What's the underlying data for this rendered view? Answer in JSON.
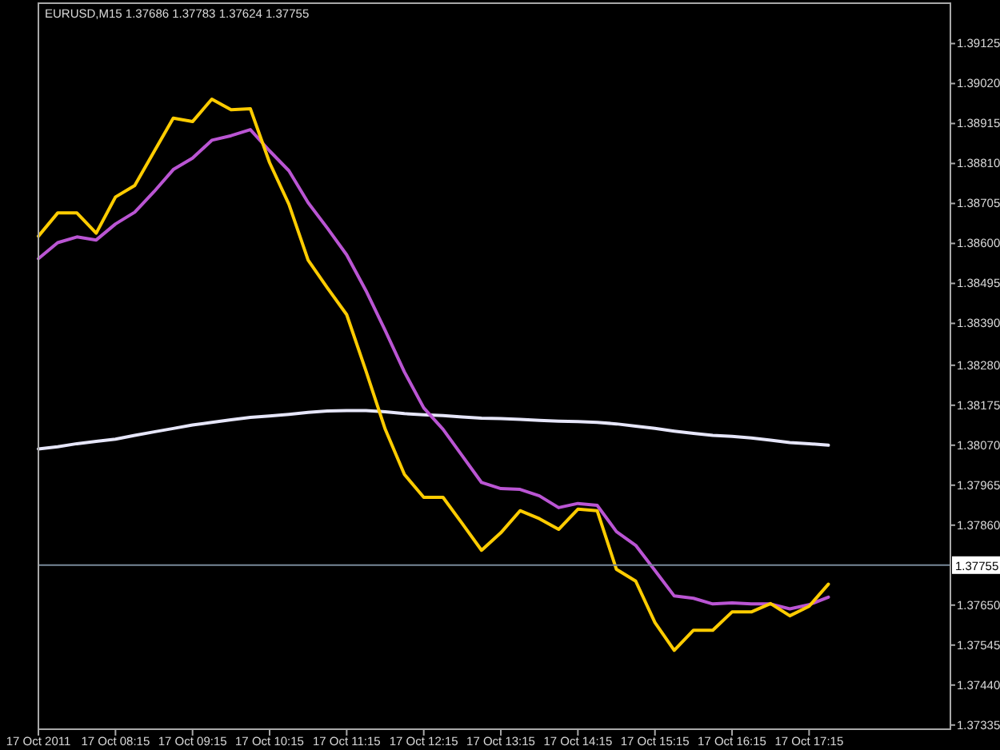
{
  "chart_data": {
    "type": "line",
    "title": "EURUSD,M15 1.37686 1.37783 1.37624 1.37755",
    "x": [
      "2011-10-17T07:15",
      "2011-10-17T07:30",
      "2011-10-17T07:45",
      "2011-10-17T08:00",
      "2011-10-17T08:15",
      "2011-10-17T08:30",
      "2011-10-17T08:45",
      "2011-10-17T09:00",
      "2011-10-17T09:15",
      "2011-10-17T09:30",
      "2011-10-17T09:45",
      "2011-10-17T10:00",
      "2011-10-17T10:15",
      "2011-10-17T10:30",
      "2011-10-17T10:45",
      "2011-10-17T11:00",
      "2011-10-17T11:15",
      "2011-10-17T11:30",
      "2011-10-17T11:45",
      "2011-10-17T12:00",
      "2011-10-17T12:15",
      "2011-10-17T12:30",
      "2011-10-17T12:45",
      "2011-10-17T13:00",
      "2011-10-17T13:15",
      "2011-10-17T13:30",
      "2011-10-17T13:45",
      "2011-10-17T14:00",
      "2011-10-17T14:15",
      "2011-10-17T14:30",
      "2011-10-17T14:45",
      "2011-10-17T15:00",
      "2011-10-17T15:15",
      "2011-10-17T15:30",
      "2011-10-17T15:45",
      "2011-10-17T16:00",
      "2011-10-17T16:15",
      "2011-10-17T16:30",
      "2011-10-17T16:45",
      "2011-10-17T17:00",
      "2011-10-17T17:15",
      "2011-10-17T17:30"
    ],
    "xlim": [
      "2011-10-17T07:15",
      "2011-10-17T19:05"
    ],
    "xticks": [
      {
        "value": "2011-10-17T07:15",
        "label": "17 Oct 2011"
      },
      {
        "value": "2011-10-17T08:15",
        "label": "17 Oct 08:15"
      },
      {
        "value": "2011-10-17T09:15",
        "label": "17 Oct 09:15"
      },
      {
        "value": "2011-10-17T10:15",
        "label": "17 Oct 10:15"
      },
      {
        "value": "2011-10-17T11:15",
        "label": "17 Oct 11:15"
      },
      {
        "value": "2011-10-17T12:15",
        "label": "17 Oct 12:15"
      },
      {
        "value": "2011-10-17T13:15",
        "label": "17 Oct 13:15"
      },
      {
        "value": "2011-10-17T14:15",
        "label": "17 Oct 14:15"
      },
      {
        "value": "2011-10-17T15:15",
        "label": "17 Oct 15:15"
      },
      {
        "value": "2011-10-17T16:15",
        "label": "17 Oct 16:15"
      },
      {
        "value": "2011-10-17T17:15",
        "label": "17 Oct 17:15"
      }
    ],
    "ylim": [
      1.37324,
      1.39231
    ],
    "yticks": [
      1.39125,
      {
        "value": 1.3902,
        "label": "1.39020"
      },
      1.38915,
      {
        "value": 1.3881,
        "label": "1.38810"
      },
      1.38705,
      {
        "value": 1.386,
        "label": "1.38600"
      },
      1.38495,
      {
        "value": 1.3839,
        "label": "1.38390"
      },
      {
        "value": 1.3828,
        "label": "1.38280"
      },
      1.38175,
      {
        "value": 1.3807,
        "label": "1.38070"
      },
      1.37965,
      {
        "value": 1.3786,
        "label": "1.37860"
      },
      {
        "value": 1.3765,
        "label": "1.37650"
      },
      1.37545,
      {
        "value": 1.3744,
        "label": "1.37440"
      },
      1.37335
    ],
    "series": [
      {
        "color": "#e6e6fa",
        "values": [
          1.3806,
          1.38066,
          1.38074,
          1.3808,
          1.38086,
          1.38096,
          1.38105,
          1.38114,
          1.38123,
          1.3813,
          1.38137,
          1.38143,
          1.38147,
          1.38151,
          1.38156,
          1.3816,
          1.38161,
          1.38161,
          1.38158,
          1.38153,
          1.3815,
          1.38148,
          1.38144,
          1.38141,
          1.3814,
          1.38138,
          1.38135,
          1.38133,
          1.38132,
          1.3813,
          1.38126,
          1.3812,
          1.38114,
          1.38107,
          1.38101,
          1.38096,
          1.38093,
          1.38089,
          1.38083,
          1.38077,
          1.38074,
          1.3807
        ]
      },
      {
        "color": "#ba55d3",
        "values": [
          1.3856,
          1.38602,
          1.38617,
          1.38609,
          1.38651,
          1.38682,
          1.38736,
          1.38794,
          1.38824,
          1.38871,
          1.38883,
          1.38899,
          1.38843,
          1.38791,
          1.38707,
          1.3864,
          1.3857,
          1.38476,
          1.38371,
          1.38262,
          1.38168,
          1.38112,
          1.38042,
          1.37972,
          1.37956,
          1.37954,
          1.37937,
          1.37906,
          1.37917,
          1.37912,
          1.37843,
          1.37807,
          1.37741,
          1.37674,
          1.37668,
          1.37653,
          1.37656,
          1.37653,
          1.37653,
          1.3764,
          1.37651,
          1.37671
        ]
      },
      {
        "color": "#ffcc00",
        "values": [
          1.38619,
          1.3868,
          1.3868,
          1.38627,
          1.38722,
          1.38752,
          1.38841,
          1.38929,
          1.3892,
          1.38979,
          1.38951,
          1.38954,
          1.38812,
          1.38703,
          1.38556,
          1.38483,
          1.38413,
          1.38265,
          1.38112,
          1.37993,
          1.37933,
          1.37933,
          1.37864,
          1.37794,
          1.3784,
          1.37898,
          1.37877,
          1.37849,
          1.37902,
          1.37898,
          1.37744,
          1.37713,
          1.37604,
          1.37531,
          1.37584,
          1.37584,
          1.37632,
          1.37632,
          1.37654,
          1.37622,
          1.37647,
          1.37705
        ]
      }
    ],
    "ref_lines": [
      {
        "axis": "y",
        "value": 1.37755,
        "label": "1.37755",
        "color": "#778899"
      }
    ]
  }
}
